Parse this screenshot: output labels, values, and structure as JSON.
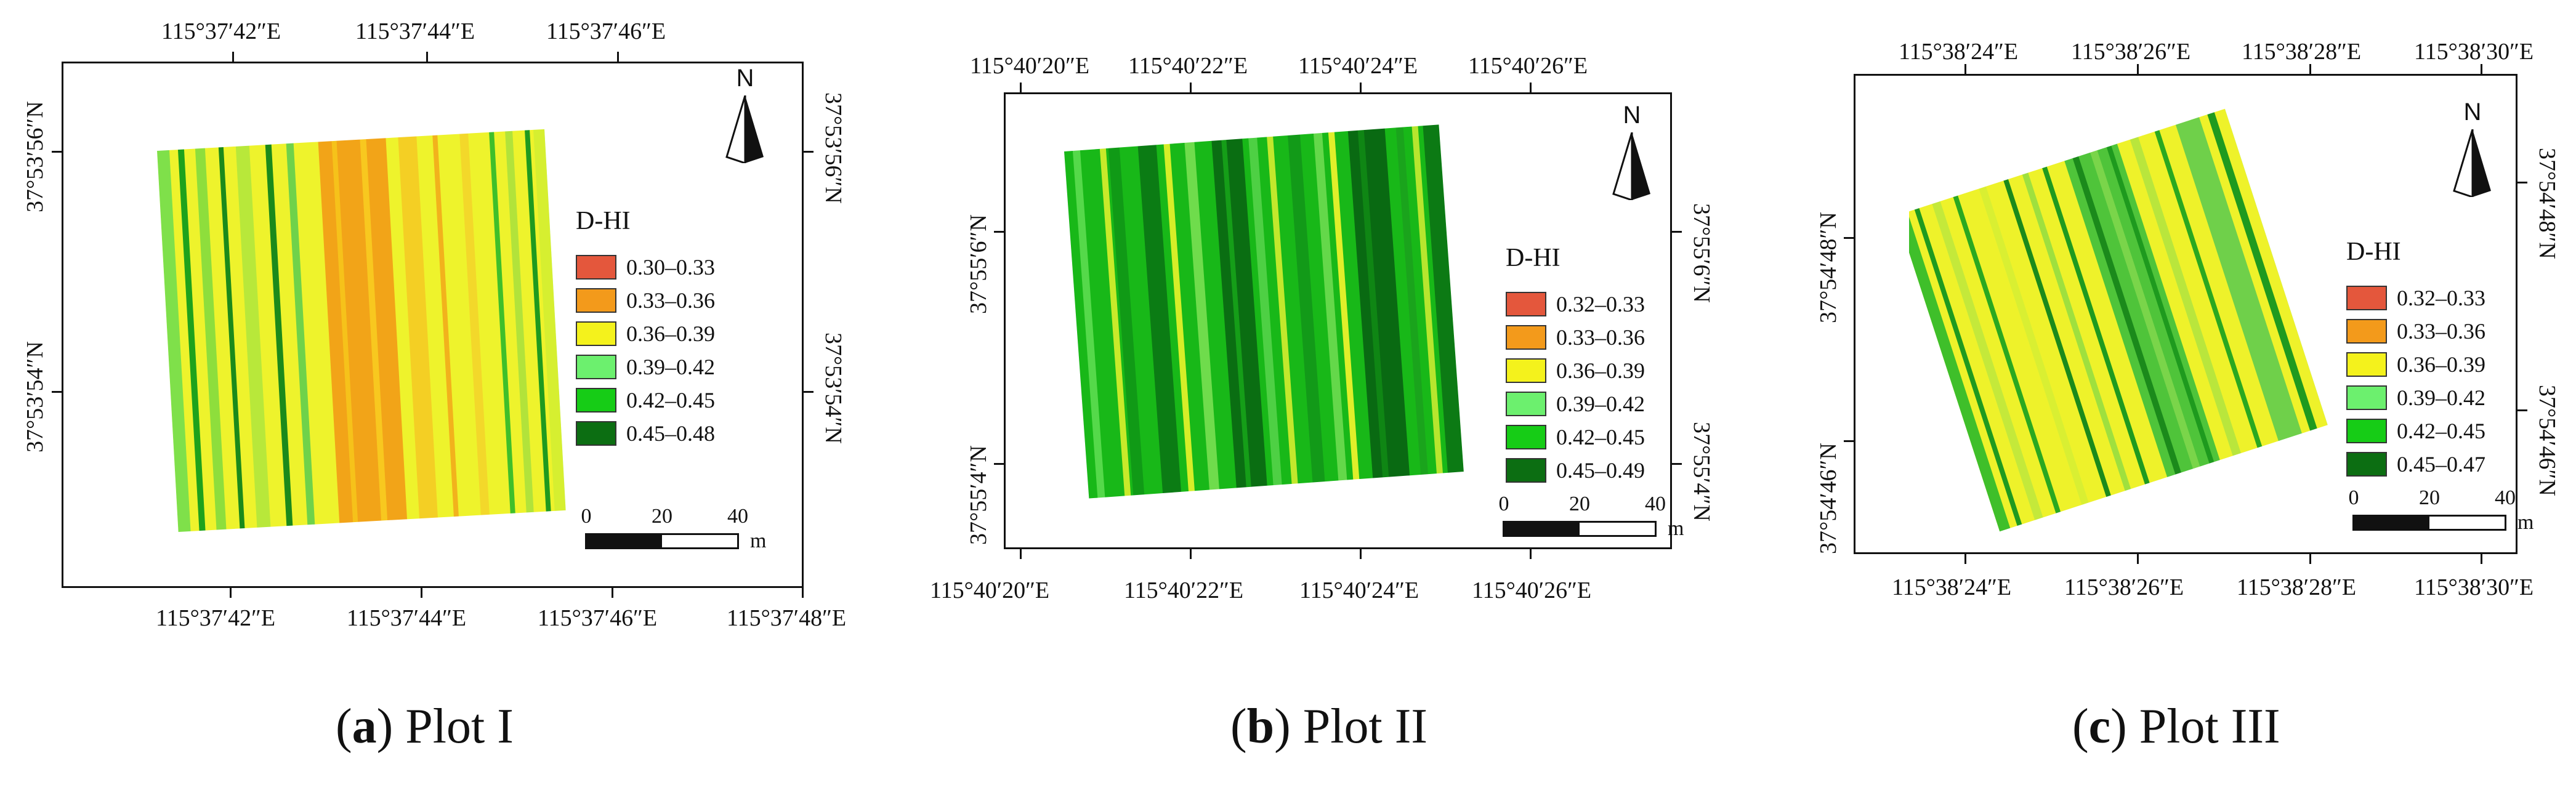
{
  "figure": {
    "panels": [
      {
        "id": "a",
        "caption_letter": "a",
        "caption_title": "Plot I",
        "top_lon_labels": [
          "115°37′42″E",
          "115°37′44″E",
          "115°37′46″E"
        ],
        "bottom_lon_labels": [
          "115°37′42″E",
          "115°37′44″E",
          "115°37′46″E",
          "115°37′48″E"
        ],
        "left_lat_labels": [
          "37°53′56″N",
          "37°53′54″N"
        ],
        "right_lat_labels": [
          "37°53′56″N",
          "37°53′54″N"
        ],
        "north_label": "N",
        "legend_title": "D-HI",
        "legend": [
          {
            "label": "0.30–0.33",
            "color": "#e4573c"
          },
          {
            "label": "0.33–0.36",
            "color": "#f39a1b"
          },
          {
            "label": "0.36–0.39",
            "color": "#f4f21c"
          },
          {
            "label": "0.39–0.42",
            "color": "#6cf06e"
          },
          {
            "label": "0.42–0.45",
            "color": "#16cc16"
          },
          {
            "label": "0.45–0.48",
            "color": "#0c6e12"
          }
        ],
        "scale_labels": [
          "0",
          "20",
          "40"
        ],
        "scale_unit": "m",
        "dominant_classes": [
          "yellow",
          "orange"
        ]
      },
      {
        "id": "b",
        "caption_letter": "b",
        "caption_title": "Plot II",
        "top_lon_labels": [
          "115°40′20″E",
          "115°40′22″E",
          "115°40′24″E",
          "115°40′26″E"
        ],
        "bottom_lon_labels": [
          "115°40′20″E",
          "115°40′22″E",
          "115°40′24″E",
          "115°40′26″E"
        ],
        "left_lat_labels": [
          "37°55′6″N",
          "37°55′4″N"
        ],
        "right_lat_labels": [
          "37°55′6″N",
          "37°55′4″N"
        ],
        "north_label": "N",
        "legend_title": "D-HI",
        "legend": [
          {
            "label": "0.32–0.33",
            "color": "#e4573c"
          },
          {
            "label": "0.33–0.36",
            "color": "#f39a1b"
          },
          {
            "label": "0.36–0.39",
            "color": "#f4f21c"
          },
          {
            "label": "0.39–0.42",
            "color": "#6cf06e"
          },
          {
            "label": "0.42–0.45",
            "color": "#16cc16"
          },
          {
            "label": "0.45–0.49",
            "color": "#0c6e12"
          }
        ],
        "scale_labels": [
          "0",
          "20",
          "40"
        ],
        "scale_unit": "m",
        "dominant_classes": [
          "green",
          "dark-green"
        ]
      },
      {
        "id": "c",
        "caption_letter": "c",
        "caption_title": "Plot III",
        "top_lon_labels": [
          "115°38′24″E",
          "115°38′26″E",
          "115°38′28″E",
          "115°38′30″E"
        ],
        "bottom_lon_labels": [
          "115°38′24″E",
          "115°38′26″E",
          "115°38′28″E",
          "115°38′30″E"
        ],
        "left_lat_labels": [
          "37°54′48″N",
          "37°54′46″N"
        ],
        "right_lat_labels": [
          "37°54′48″N",
          "37°54′46″N"
        ],
        "north_label": "N",
        "legend_title": "D-HI",
        "legend": [
          {
            "label": "0.32–0.33",
            "color": "#e4573c"
          },
          {
            "label": "0.33–0.36",
            "color": "#f39a1b"
          },
          {
            "label": "0.36–0.39",
            "color": "#f4f21c"
          },
          {
            "label": "0.39–0.42",
            "color": "#6cf06e"
          },
          {
            "label": "0.42–0.45",
            "color": "#16cc16"
          },
          {
            "label": "0.45–0.47",
            "color": "#0c6e12"
          }
        ],
        "scale_labels": [
          "0",
          "20",
          "40"
        ],
        "scale_unit": "m",
        "dominant_classes": [
          "yellow",
          "green"
        ]
      }
    ]
  }
}
